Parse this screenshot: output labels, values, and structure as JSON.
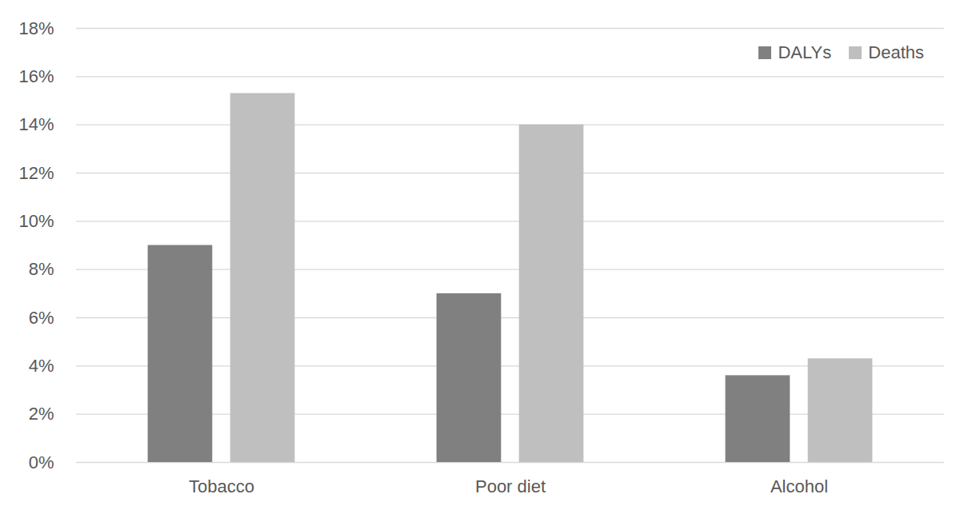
{
  "chart_data": {
    "type": "bar",
    "categories": [
      "Tobacco",
      "Poor diet",
      "Alcohol"
    ],
    "series": [
      {
        "name": "DALYs",
        "color": "#808080",
        "values": [
          9.0,
          7.0,
          3.6
        ]
      },
      {
        "name": "Deaths",
        "color": "#bfbfbf",
        "values": [
          15.3,
          14.0,
          4.3
        ]
      }
    ],
    "ylim": [
      0,
      18
    ],
    "yticks": [
      {
        "value": 0,
        "label": "0%"
      },
      {
        "value": 2,
        "label": "2%"
      },
      {
        "value": 4,
        "label": "4%"
      },
      {
        "value": 6,
        "label": "6%"
      },
      {
        "value": 8,
        "label": "8%"
      },
      {
        "value": 10,
        "label": "10%"
      },
      {
        "value": 12,
        "label": "12%"
      },
      {
        "value": 14,
        "label": "14%"
      },
      {
        "value": 16,
        "label": "16%"
      },
      {
        "value": 18,
        "label": "18%"
      }
    ],
    "grid": true,
    "legend": "top-right"
  }
}
